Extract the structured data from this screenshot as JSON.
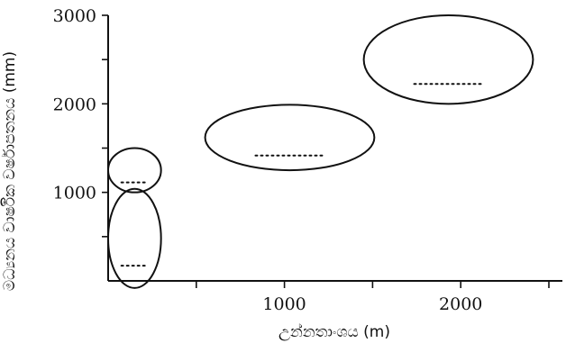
{
  "figure": {
    "y_axis": {
      "title": "මධ්‍යනය වාර්ෂික වර්ෂාපතනය (mm)",
      "ticks": [
        {
          "value": 1000,
          "label": "1000"
        },
        {
          "value": 2000,
          "label": "2000"
        },
        {
          "value": 3000,
          "label": "3000"
        }
      ],
      "minor_ticks": [
        500,
        1500,
        2500
      ],
      "range": [
        0,
        3000
      ]
    },
    "x_axis": {
      "title": "උන්නතාංශය (m)",
      "ticks": [
        {
          "value": 1000,
          "label": "1000"
        },
        {
          "value": 2000,
          "label": "2000"
        }
      ],
      "minor_ticks": [
        500,
        1500,
        2500
      ],
      "range": [
        0,
        2650
      ]
    },
    "zones": [
      {
        "id": "zone-lowland-dry",
        "center_altitude": 150,
        "center_rainfall": 480,
        "altitude_halfwidth": 150,
        "rainfall_halfheight": 560
      },
      {
        "id": "zone-lowland-wet",
        "center_altitude": 150,
        "center_rainfall": 1250,
        "altitude_halfwidth": 150,
        "rainfall_halfheight": 250
      },
      {
        "id": "zone-mid",
        "center_altitude": 1030,
        "center_rainfall": 1620,
        "altitude_halfwidth": 480,
        "rainfall_halfheight": 370
      },
      {
        "id": "zone-high",
        "center_altitude": 1930,
        "center_rainfall": 2500,
        "altitude_halfwidth": 480,
        "rainfall_halfheight": 500
      }
    ]
  }
}
